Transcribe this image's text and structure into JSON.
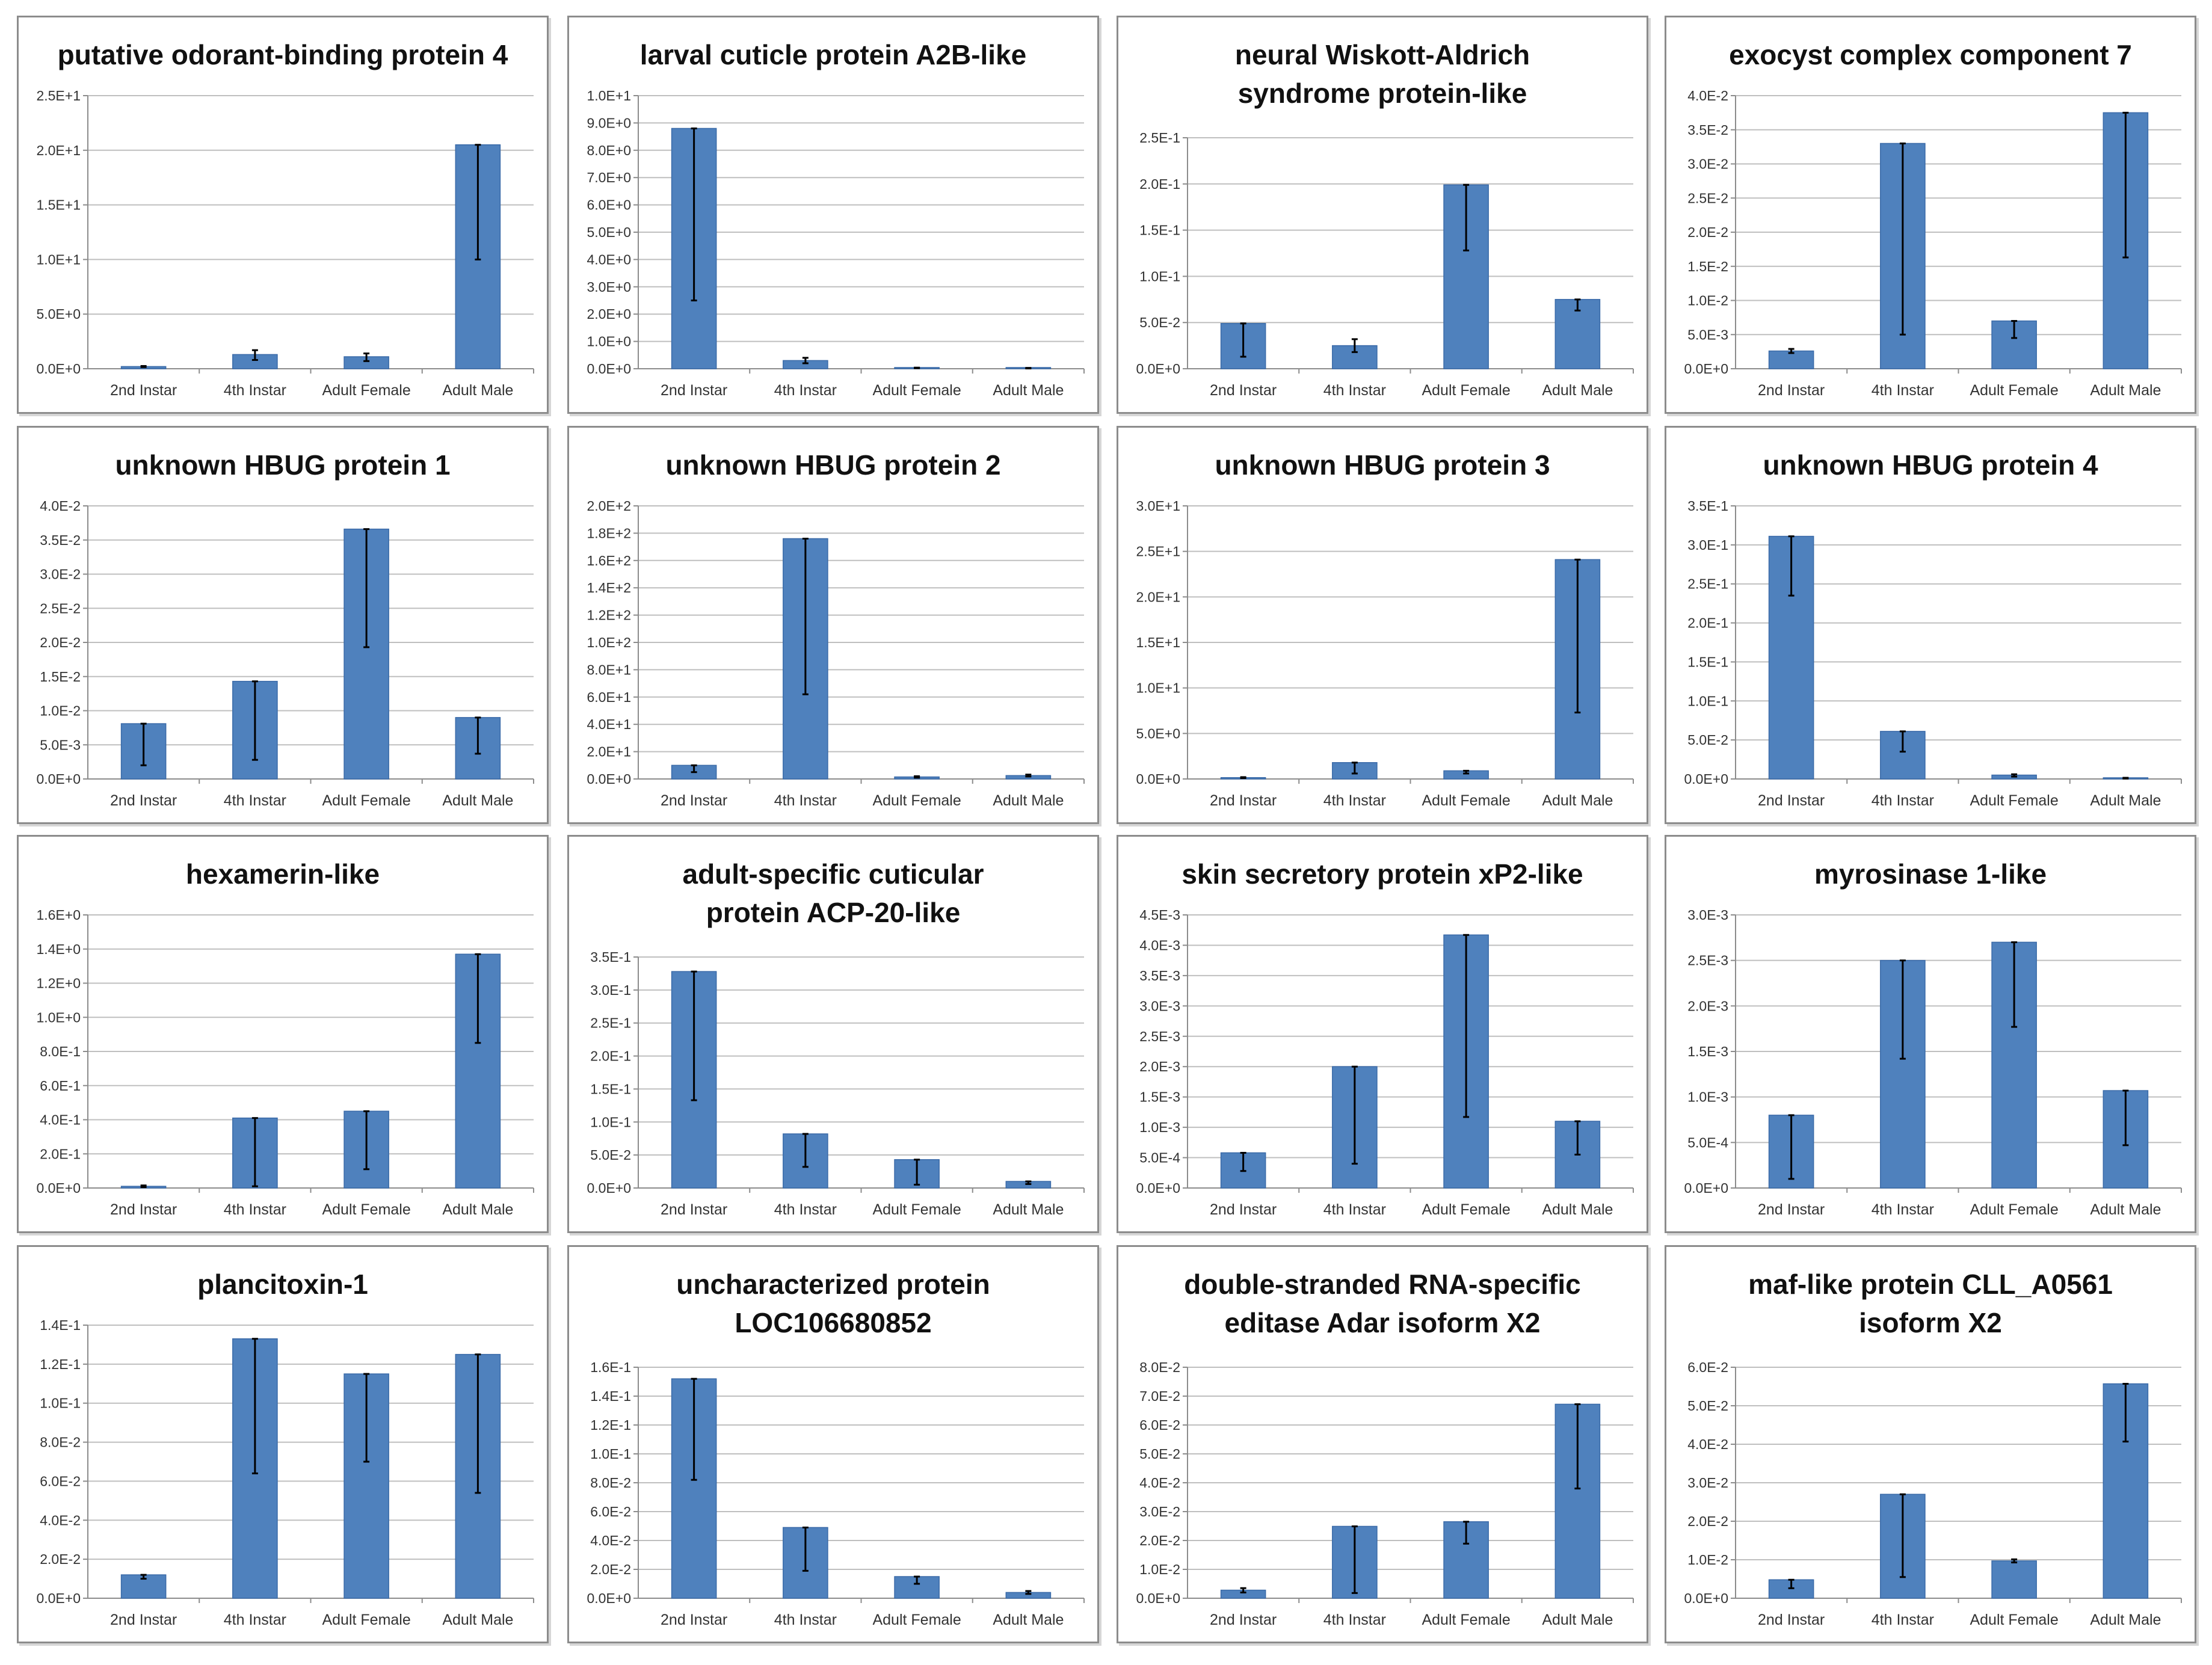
{
  "colors": {
    "bar": "#4f81bd",
    "bar_edge": "#3a6aa8",
    "grid": "#bfbfbf",
    "axis": "#8c8c8c",
    "error_bar": "#000000",
    "panel_border": "#8c8c8c"
  },
  "chart_data": [
    {
      "type": "bar",
      "title": [
        "putative odorant-binding protein 4"
      ],
      "categories": [
        "2nd Instar",
        "4th Instar",
        "Adult Female",
        "Adult Male"
      ],
      "yticks": [
        "0.0E+0",
        "5.0E+0",
        "1.0E+1",
        "1.5E+1",
        "2.0E+1",
        "2.5E+1"
      ],
      "ylim": [
        0,
        25
      ],
      "values": [
        0.2,
        1.3,
        1.1,
        20.5
      ],
      "err_low": [
        0.15,
        0.8,
        0.7,
        10.0
      ],
      "err_high": [
        0.25,
        1.7,
        1.4,
        20.5
      ]
    },
    {
      "type": "bar",
      "title": [
        "larval cuticle protein A2B-like"
      ],
      "categories": [
        "2nd Instar",
        "4th Instar",
        "Adult Female",
        "Adult Male"
      ],
      "yticks": [
        "0.0E+0",
        "1.0E+0",
        "2.0E+0",
        "3.0E+0",
        "4.0E+0",
        "5.0E+0",
        "6.0E+0",
        "7.0E+0",
        "8.0E+0",
        "9.0E+0",
        "1.0E+1"
      ],
      "ylim": [
        0,
        10
      ],
      "values": [
        8.8,
        0.3,
        0.03,
        0.02
      ],
      "err_low": [
        2.5,
        0.2,
        0.02,
        0.01
      ],
      "err_high": [
        8.8,
        0.4,
        0.04,
        0.03
      ]
    },
    {
      "type": "bar",
      "title": [
        "neural Wiskott-Aldrich",
        "syndrome protein-like"
      ],
      "categories": [
        "2nd Instar",
        "4th Instar",
        "Adult Female",
        "Adult Male"
      ],
      "yticks": [
        "0.0E+0",
        "5.0E-2",
        "1.0E-1",
        "1.5E-1",
        "2.0E-1",
        "2.5E-1"
      ],
      "ylim": [
        0,
        0.25
      ],
      "values": [
        0.049,
        0.025,
        0.199,
        0.075
      ],
      "err_low": [
        0.013,
        0.018,
        0.128,
        0.063
      ],
      "err_high": [
        0.049,
        0.032,
        0.199,
        0.075
      ]
    },
    {
      "type": "bar",
      "title": [
        "exocyst complex component 7"
      ],
      "categories": [
        "2nd Instar",
        "4th Instar",
        "Adult Female",
        "Adult Male"
      ],
      "yticks": [
        "0.0E+0",
        "5.0E-3",
        "1.0E-2",
        "1.5E-2",
        "2.0E-2",
        "2.5E-2",
        "3.0E-2",
        "3.5E-2",
        "4.0E-2"
      ],
      "ylim": [
        0,
        0.04
      ],
      "values": [
        0.0026,
        0.033,
        0.007,
        0.0375
      ],
      "err_low": [
        0.0023,
        0.005,
        0.0045,
        0.0163
      ],
      "err_high": [
        0.0029,
        0.033,
        0.007,
        0.0375
      ]
    },
    {
      "type": "bar",
      "title": [
        "unknown HBUG protein 1"
      ],
      "categories": [
        "2nd Instar",
        "4th Instar",
        "Adult Female",
        "Adult Male"
      ],
      "yticks": [
        "0.0E+0",
        "5.0E-3",
        "1.0E-2",
        "1.5E-2",
        "2.0E-2",
        "2.5E-2",
        "3.0E-2",
        "3.5E-2",
        "4.0E-2"
      ],
      "ylim": [
        0,
        0.04
      ],
      "values": [
        0.0081,
        0.0143,
        0.0366,
        0.009
      ],
      "err_low": [
        0.002,
        0.0028,
        0.0193,
        0.0037
      ],
      "err_high": [
        0.0081,
        0.0143,
        0.0366,
        0.009
      ]
    },
    {
      "type": "bar",
      "title": [
        "unknown HBUG protein 2"
      ],
      "categories": [
        "2nd Instar",
        "4th Instar",
        "Adult Female",
        "Adult Male"
      ],
      "yticks": [
        "0.0E+0",
        "2.0E+1",
        "4.0E+1",
        "6.0E+1",
        "8.0E+1",
        "1.0E+2",
        "1.2E+2",
        "1.4E+2",
        "1.6E+2",
        "1.8E+2",
        "2.0E+2"
      ],
      "ylim": [
        0,
        200
      ],
      "values": [
        10,
        176,
        1.5,
        2.5
      ],
      "err_low": [
        5,
        62,
        1.0,
        1.8
      ],
      "err_high": [
        10,
        176,
        2.0,
        3.2
      ]
    },
    {
      "type": "bar",
      "title": [
        "unknown HBUG protein 3"
      ],
      "categories": [
        "2nd Instar",
        "4th Instar",
        "Adult Female",
        "Adult Male"
      ],
      "yticks": [
        "0.0E+0",
        "5.0E+0",
        "1.0E+1",
        "1.5E+1",
        "2.0E+1",
        "2.5E+1",
        "3.0E+1"
      ],
      "ylim": [
        0,
        30
      ],
      "values": [
        0.15,
        1.8,
        0.9,
        24.1
      ],
      "err_low": [
        0.1,
        0.6,
        0.6,
        7.3
      ],
      "err_high": [
        0.2,
        1.8,
        0.9,
        24.1
      ]
    },
    {
      "type": "bar",
      "title": [
        "unknown HBUG protein 4"
      ],
      "categories": [
        "2nd Instar",
        "4th Instar",
        "Adult Female",
        "Adult Male"
      ],
      "yticks": [
        "0.0E+0",
        "5.0E-2",
        "1.0E-1",
        "1.5E-1",
        "2.0E-1",
        "2.5E-1",
        "3.0E-1",
        "3.5E-1"
      ],
      "ylim": [
        0,
        0.35
      ],
      "values": [
        0.311,
        0.061,
        0.005,
        0.001
      ],
      "err_low": [
        0.235,
        0.035,
        0.003,
        0.0005
      ],
      "err_high": [
        0.311,
        0.061,
        0.006,
        0.0015
      ]
    },
    {
      "type": "bar",
      "title": [
        "hexamerin-like"
      ],
      "categories": [
        "2nd Instar",
        "4th Instar",
        "Adult Female",
        "Adult Male"
      ],
      "yticks": [
        "0.0E+0",
        "2.0E-1",
        "4.0E-1",
        "6.0E-1",
        "8.0E-1",
        "1.0E+0",
        "1.2E+0",
        "1.4E+0",
        "1.6E+0"
      ],
      "ylim": [
        0,
        1.6
      ],
      "values": [
        0.01,
        0.41,
        0.45,
        1.37
      ],
      "err_low": [
        0.005,
        0.01,
        0.11,
        0.85
      ],
      "err_high": [
        0.015,
        0.41,
        0.45,
        1.37
      ]
    },
    {
      "type": "bar",
      "title": [
        "adult-specific cuticular",
        "protein ACP-20-like"
      ],
      "categories": [
        "2nd Instar",
        "4th Instar",
        "Adult Female",
        "Adult Male"
      ],
      "yticks": [
        "0.0E+0",
        "5.0E-2",
        "1.0E-1",
        "1.5E-1",
        "2.0E-1",
        "2.5E-1",
        "3.0E-1",
        "3.5E-1"
      ],
      "ylim": [
        0,
        0.35
      ],
      "values": [
        0.328,
        0.082,
        0.043,
        0.01
      ],
      "err_low": [
        0.133,
        0.032,
        0.005,
        0.006
      ],
      "err_high": [
        0.328,
        0.082,
        0.043,
        0.01
      ]
    },
    {
      "type": "bar",
      "title": [
        "skin secretory protein xP2-like"
      ],
      "categories": [
        "2nd Instar",
        "4th Instar",
        "Adult Female",
        "Adult Male"
      ],
      "yticks": [
        "0.0E+0",
        "5.0E-4",
        "1.0E-3",
        "1.5E-3",
        "2.0E-3",
        "2.5E-3",
        "3.0E-3",
        "3.5E-3",
        "4.0E-3",
        "4.5E-3"
      ],
      "ylim": [
        0,
        0.0045
      ],
      "values": [
        0.00058,
        0.002,
        0.00417,
        0.0011
      ],
      "err_low": [
        0.00028,
        0.0004,
        0.00117,
        0.00055
      ],
      "err_high": [
        0.00058,
        0.002,
        0.00417,
        0.0011
      ]
    },
    {
      "type": "bar",
      "title": [
        "myrosinase 1-like"
      ],
      "categories": [
        "2nd Instar",
        "4th Instar",
        "Adult Female",
        "Adult Male"
      ],
      "yticks": [
        "0.0E+0",
        "5.0E-4",
        "1.0E-3",
        "1.5E-3",
        "2.0E-3",
        "2.5E-3",
        "3.0E-3"
      ],
      "ylim": [
        0,
        0.003
      ],
      "values": [
        0.0008,
        0.0025,
        0.0027,
        0.00107
      ],
      "err_low": [
        0.0001,
        0.00142,
        0.00177,
        0.00047
      ],
      "err_high": [
        0.0008,
        0.0025,
        0.0027,
        0.00107
      ]
    },
    {
      "type": "bar",
      "title": [
        "plancitoxin-1"
      ],
      "categories": [
        "2nd Instar",
        "4th Instar",
        "Adult Female",
        "Adult Male"
      ],
      "yticks": [
        "0.0E+0",
        "2.0E-2",
        "4.0E-2",
        "6.0E-2",
        "8.0E-2",
        "1.0E-1",
        "1.2E-1",
        "1.4E-1"
      ],
      "ylim": [
        0,
        0.14
      ],
      "values": [
        0.012,
        0.133,
        0.115,
        0.125
      ],
      "err_low": [
        0.01,
        0.064,
        0.07,
        0.054
      ],
      "err_high": [
        0.012,
        0.133,
        0.115,
        0.125
      ]
    },
    {
      "type": "bar",
      "title": [
        "uncharacterized protein",
        "LOC106680852"
      ],
      "categories": [
        "2nd Instar",
        "4th Instar",
        "Adult Female",
        "Adult Male"
      ],
      "yticks": [
        "0.0E+0",
        "2.0E-2",
        "4.0E-2",
        "6.0E-2",
        "8.0E-2",
        "1.0E-1",
        "1.2E-1",
        "1.4E-1",
        "1.6E-1"
      ],
      "ylim": [
        0,
        0.16
      ],
      "values": [
        0.152,
        0.049,
        0.015,
        0.004
      ],
      "err_low": [
        0.082,
        0.019,
        0.01,
        0.003
      ],
      "err_high": [
        0.152,
        0.049,
        0.015,
        0.005
      ]
    },
    {
      "type": "bar",
      "title": [
        "double-stranded RNA-specific",
        "editase Adar isoform X2"
      ],
      "categories": [
        "2nd Instar",
        "4th Instar",
        "Adult Female",
        "Adult Male"
      ],
      "yticks": [
        "0.0E+0",
        "1.0E-2",
        "2.0E-2",
        "3.0E-2",
        "4.0E-2",
        "5.0E-2",
        "6.0E-2",
        "7.0E-2",
        "8.0E-2"
      ],
      "ylim": [
        0,
        0.08
      ],
      "values": [
        0.0028,
        0.0249,
        0.0265,
        0.0672
      ],
      "err_low": [
        0.002,
        0.0018,
        0.0189,
        0.038
      ],
      "err_high": [
        0.0035,
        0.0249,
        0.0265,
        0.0672
      ]
    },
    {
      "type": "bar",
      "title": [
        "maf-like protein CLL_A0561",
        "isoform X2"
      ],
      "categories": [
        "2nd Instar",
        "4th Instar",
        "Adult Female",
        "Adult Male"
      ],
      "yticks": [
        "0.0E+0",
        "1.0E-2",
        "2.0E-2",
        "3.0E-2",
        "4.0E-2",
        "5.0E-2",
        "6.0E-2"
      ],
      "ylim": [
        0,
        0.06
      ],
      "values": [
        0.0048,
        0.027,
        0.0097,
        0.0557
      ],
      "err_low": [
        0.0026,
        0.0055,
        0.0093,
        0.0407
      ],
      "err_high": [
        0.0048,
        0.027,
        0.0101,
        0.0557
      ]
    }
  ]
}
